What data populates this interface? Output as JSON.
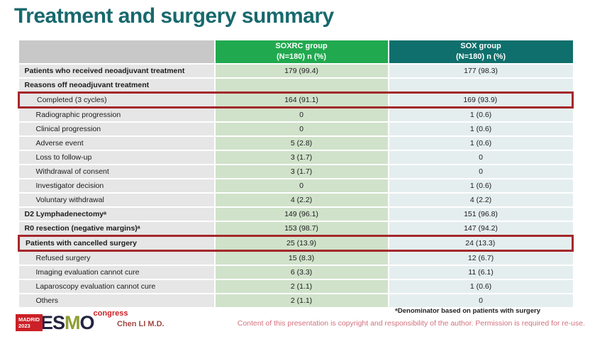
{
  "colors": {
    "title_teal": "#17696d",
    "header_green": "#21a94f",
    "header_teal": "#0f6f6c",
    "header_gray": "#c8c8c8",
    "label_column_bg": "#e6e6e6",
    "soxrc_column_bg": "#d0e2ca",
    "sox_column_bg": "#e5eeef",
    "highlight_box_red": "#a4282b",
    "copyright_pink": "#d2717e",
    "author_red": "#a04843",
    "logo_red": "#cb2027",
    "logo_dark": "#232340",
    "logo_olive": "#8f9e33"
  },
  "slide": {
    "title": "Treatment and surgery summary"
  },
  "table": {
    "header": {
      "label": "",
      "soxrc": {
        "line1": "SOXRC group",
        "line2": "(N=180) n (%)"
      },
      "sox": {
        "line1": "SOX group",
        "line2": "(N=180) n (%)"
      }
    },
    "rows": [
      {
        "label": "Patients who received neoadjuvant treatment",
        "soxrc": "179 (99.4)",
        "sox": "177 (98.3)",
        "bold": true,
        "indent": false,
        "highlight": false
      },
      {
        "label": "Reasons off neoadjuvant treatment",
        "soxrc": "",
        "sox": "",
        "bold": true,
        "indent": false,
        "highlight": false
      },
      {
        "label": "Completed (3 cycles)",
        "soxrc": "164 (91.1)",
        "sox": "169 (93.9)",
        "bold": false,
        "indent": true,
        "highlight": true
      },
      {
        "label": "Radiographic progression",
        "soxrc": "0",
        "sox": "1 (0.6)",
        "bold": false,
        "indent": true,
        "highlight": false
      },
      {
        "label": "Clinical progression",
        "soxrc": "0",
        "sox": "1 (0.6)",
        "bold": false,
        "indent": true,
        "highlight": false
      },
      {
        "label": "Adverse event",
        "soxrc": "5 (2.8)",
        "sox": "1 (0.6)",
        "bold": false,
        "indent": true,
        "highlight": false
      },
      {
        "label": "Loss to follow-up",
        "soxrc": "3 (1.7)",
        "sox": "0",
        "bold": false,
        "indent": true,
        "highlight": false
      },
      {
        "label": "Withdrawal of consent",
        "soxrc": "3 (1.7)",
        "sox": "0",
        "bold": false,
        "indent": true,
        "highlight": false
      },
      {
        "label": "Investigator decision",
        "soxrc": "0",
        "sox": "1 (0.6)",
        "bold": false,
        "indent": true,
        "highlight": false
      },
      {
        "label": "Voluntary withdrawal",
        "soxrc": "4 (2.2)",
        "sox": "4 (2.2)",
        "bold": false,
        "indent": true,
        "highlight": false
      },
      {
        "label": "D2 Lymphadenectomyᵃ",
        "soxrc": "149 (96.1)",
        "sox": "151 (96.8)",
        "bold": true,
        "indent": false,
        "highlight": false
      },
      {
        "label": "R0 resection (negative margins)ᵃ",
        "soxrc": "153 (98.7)",
        "sox": "147 (94.2)",
        "bold": true,
        "indent": false,
        "highlight": false
      },
      {
        "label": "Patients with cancelled surgery",
        "soxrc": "25 (13.9)",
        "sox": "24 (13.3)",
        "bold": true,
        "indent": false,
        "highlight": true
      },
      {
        "label": "Refused surgery",
        "soxrc": "15 (8.3)",
        "sox": "12 (6.7)",
        "bold": false,
        "indent": true,
        "highlight": false
      },
      {
        "label": "Imaging evaluation cannot cure",
        "soxrc": "6 (3.3)",
        "sox": "11 (6.1)",
        "bold": false,
        "indent": true,
        "highlight": false
      },
      {
        "label": "Laparoscopy evaluation cannot cure",
        "soxrc": "2 (1.1)",
        "sox": "1 (0.6)",
        "bold": false,
        "indent": true,
        "highlight": false
      },
      {
        "label": "Others",
        "soxrc": "2 (1.1)",
        "sox": "0",
        "bold": false,
        "indent": true,
        "highlight": false
      }
    ]
  },
  "footer": {
    "logo": {
      "city": "MADRID",
      "year": "2023",
      "esmo_es": "ES",
      "esmo_m": "M",
      "esmo_o": "O",
      "congress": "congress"
    },
    "author": "Chen LI M.D.",
    "footnote": "ᵃDenominator based on patients with surgery",
    "copyright": "Content of this presentation is copyright and responsibility of the author. Permission is required for re-use."
  }
}
